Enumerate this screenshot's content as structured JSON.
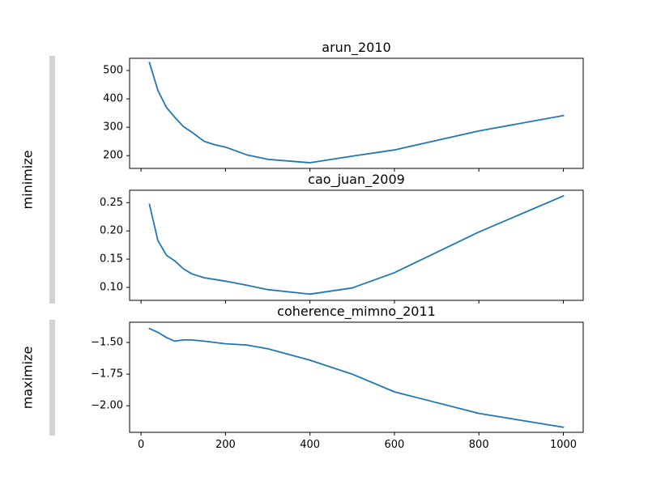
{
  "chart_data": {
    "type": "line",
    "line_color": "#1f77b4",
    "group_bar_color": "#d3d3d3",
    "grid": false,
    "shared_x": true,
    "x_ticks": [
      0,
      200,
      400,
      600,
      800,
      1000
    ],
    "x_tick_labels": [
      "0",
      "200",
      "400",
      "600",
      "800",
      "1000"
    ],
    "xlim": [
      -27,
      1047
    ],
    "groups": [
      {
        "label": "minimize",
        "panels": [
          0,
          1
        ]
      },
      {
        "label": "maximize",
        "panels": [
          2
        ]
      }
    ],
    "panels": [
      {
        "title": "arun_2010",
        "ylim": [
          155,
          543
        ],
        "y_ticks": [
          200,
          300,
          400,
          500
        ],
        "y_tick_labels": [
          "200",
          "300",
          "400",
          "500"
        ],
        "series": [
          {
            "x": [
              20,
              40,
              60,
              80,
              100,
              120,
              150,
              175,
              200,
              250,
              300,
              400,
              500,
              600,
              800,
              1000
            ],
            "y": [
              528,
              430,
              370,
              335,
              303,
              283,
              250,
              238,
              230,
              203,
              187,
              175,
              198,
              220,
              287,
              341
            ]
          }
        ]
      },
      {
        "title": "cao_juan_2009",
        "ylim": [
          0.077,
          0.272
        ],
        "y_ticks": [
          0.1,
          0.15,
          0.2,
          0.25
        ],
        "y_tick_labels": [
          "0.10",
          "0.15",
          "0.20",
          "0.25"
        ],
        "series": [
          {
            "x": [
              20,
              40,
              60,
              80,
              100,
              120,
              150,
              175,
              200,
              250,
              300,
              400,
              500,
              600,
              800,
              1000
            ],
            "y": [
              0.247,
              0.183,
              0.157,
              0.147,
              0.133,
              0.124,
              0.117,
              0.114,
              0.111,
              0.104,
              0.096,
              0.088,
              0.099,
              0.126,
              0.198,
              0.262
            ]
          }
        ]
      },
      {
        "title": "coherence_mimno_2011",
        "ylim": [
          -2.21,
          -1.34
        ],
        "y_ticks": [
          -1.5,
          -1.75,
          -2.0
        ],
        "y_tick_labels": [
          "−1.50",
          "−1.75",
          "−2.00"
        ],
        "series": [
          {
            "x": [
              20,
              40,
              60,
              80,
              100,
              120,
              150,
              175,
              200,
              250,
              300,
              400,
              500,
              600,
              800,
              1000
            ],
            "y": [
              -1.39,
              -1.42,
              -1.46,
              -1.49,
              -1.48,
              -1.48,
              -1.49,
              -1.5,
              -1.51,
              -1.52,
              -1.55,
              -1.64,
              -1.75,
              -1.89,
              -2.06,
              -2.17
            ]
          }
        ]
      }
    ]
  }
}
